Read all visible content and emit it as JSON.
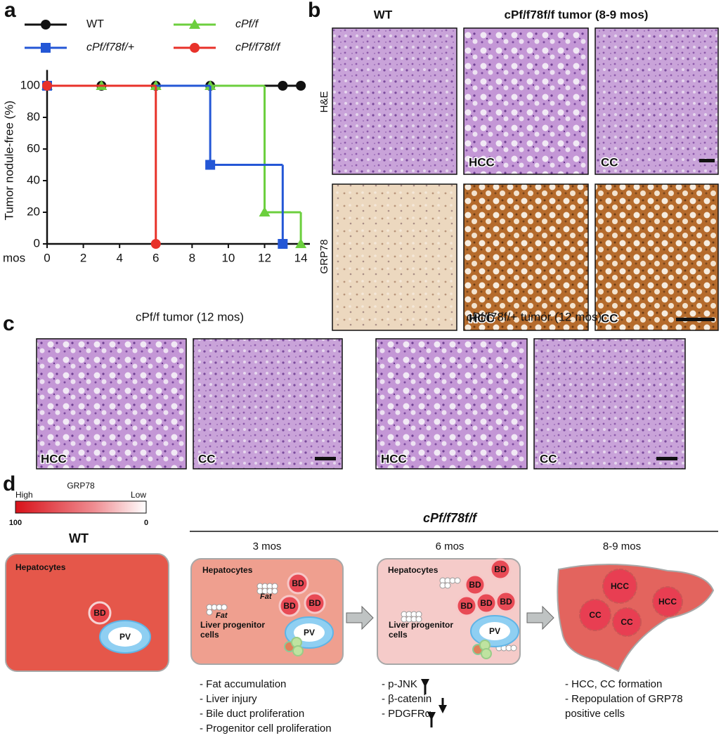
{
  "chart_data": {
    "type": "step",
    "panel_label": "a",
    "y_label": "Tumor nodule-free (%)",
    "x_label": "mos",
    "xlim": [
      0,
      14.5
    ],
    "ylim": [
      0,
      110
    ],
    "xticks": [
      0,
      2,
      4,
      6,
      8,
      10,
      12,
      14
    ],
    "yticks": [
      0,
      20,
      40,
      60,
      80,
      100
    ],
    "series": [
      {
        "name": "WT",
        "color": "#111111",
        "marker": "circle",
        "x": [
          0,
          3,
          6,
          9,
          13,
          14
        ],
        "values": [
          100,
          100,
          100,
          100,
          100,
          100
        ]
      },
      {
        "name": "cPf/f",
        "color": "#6ccf3e",
        "marker": "triangle",
        "x": [
          0,
          3,
          6,
          9,
          12,
          14
        ],
        "values": [
          100,
          100,
          100,
          100,
          20,
          0
        ]
      },
      {
        "name": "cPf/f78f/+",
        "color": "#2457d6",
        "marker": "square",
        "x": [
          0,
          9,
          13
        ],
        "values": [
          100,
          50,
          0
        ]
      },
      {
        "name": "cPf/f78f/f",
        "color": "#e8322a",
        "marker": "circle",
        "x": [
          0,
          6
        ],
        "values": [
          100,
          0
        ]
      }
    ]
  },
  "panel_b": {
    "label": "b",
    "col_titles": [
      "WT",
      "cPf/f78f/f tumor (8-9 mos)"
    ],
    "row_labels": [
      "H&E",
      "GRP78"
    ],
    "hcc": "HCC",
    "cc": "CC"
  },
  "panel_c": {
    "label": "c",
    "titles": [
      "cPf/f tumor (12 mos)",
      "cPf/f78f/+ tumor (12 mos)"
    ],
    "hcc": "HCC",
    "cc": "CC"
  },
  "panel_d": {
    "label": "d",
    "scale": {
      "title": "GRP78",
      "high": "High",
      "low": "Low",
      "max": 100,
      "min": 0
    },
    "wt": {
      "title": "WT",
      "cells": "Hepatocytes",
      "bd": "BD",
      "pv": "PV"
    },
    "genotype": "cPf/f78f/f",
    "stages": [
      {
        "time": "3 mos",
        "cells": "Hepatocytes",
        "fat": "Fat",
        "bd": "BD",
        "pv": "PV",
        "progenitor": "Liver progenitor cells",
        "notes": [
          "- Fat accumulation",
          "- Liver injury",
          "- Bile duct proliferation",
          "- Progenitor cell proliferation"
        ]
      },
      {
        "time": "6 mos",
        "cells": "Hepatocytes",
        "bd": "BD",
        "pv": "PV",
        "progenitor": "Liver progenitor cells",
        "notes": [
          "- p-JNK",
          "- β-catenin",
          "- PDGFRα"
        ]
      },
      {
        "time": "8-9 mos",
        "hcc": "HCC",
        "cc": "CC",
        "notes": [
          "- HCC, CC formation",
          "- Repopulation of GRP78 positive cells"
        ]
      }
    ]
  }
}
